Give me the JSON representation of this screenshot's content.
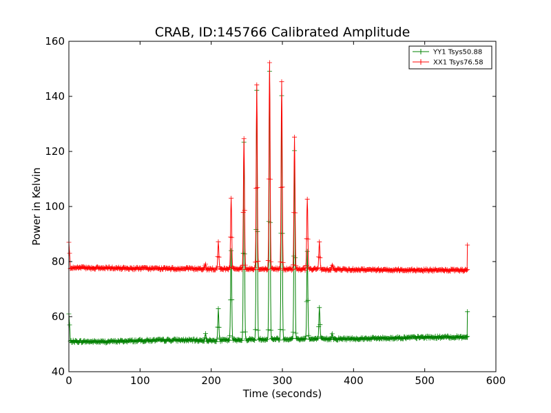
{
  "chart_data": {
    "type": "line",
    "title": "CRAB, ID:145766 Calibrated Amplitude",
    "xlabel": "Time (seconds)",
    "ylabel": "Power in Kelvin",
    "xlim": [
      0,
      600
    ],
    "ylim": [
      40,
      160
    ],
    "xticks": [
      0,
      100,
      200,
      300,
      400,
      500,
      600
    ],
    "yticks": [
      40,
      60,
      80,
      100,
      120,
      140,
      160
    ],
    "grid": false,
    "legend_position": "top-right",
    "x_range": [
      0,
      560
    ],
    "pulse_times": [
      192,
      210,
      228,
      246,
      264,
      282,
      299,
      317,
      335,
      352,
      370
    ],
    "series": [
      {
        "name": "YY1 Tsys50.88",
        "color": "#008000",
        "baseline": [
          [
            0,
            51.0
          ],
          [
            50,
            50.9
          ],
          [
            100,
            51.3
          ],
          [
            150,
            51.5
          ],
          [
            200,
            51.3
          ],
          [
            250,
            51.7
          ],
          [
            300,
            51.9
          ],
          [
            350,
            51.8
          ],
          [
            400,
            52.0
          ],
          [
            450,
            52.2
          ],
          [
            500,
            52.5
          ],
          [
            560,
            52.6
          ]
        ],
        "pulse_peaks": [
          53.5,
          62.5,
          84.0,
          123.0,
          142.0,
          149.0,
          140.0,
          120.0,
          84.0,
          63.0,
          54.0
        ],
        "start_spike": 61.0,
        "end_spike": 61.8,
        "end_dip": 51.5
      },
      {
        "name": "XX1 Tsys76.58",
        "color": "#ff0000",
        "baseline": [
          [
            0,
            77.8
          ],
          [
            50,
            77.6
          ],
          [
            100,
            77.5
          ],
          [
            150,
            77.4
          ],
          [
            200,
            77.3
          ],
          [
            250,
            77.4
          ],
          [
            300,
            77.3
          ],
          [
            350,
            77.2
          ],
          [
            400,
            77.1
          ],
          [
            450,
            77.0
          ],
          [
            500,
            76.9
          ],
          [
            560,
            76.8
          ]
        ],
        "pulse_peaks": [
          79.0,
          87.0,
          103.0,
          125.0,
          144.0,
          152.0,
          145.0,
          125.0,
          103.0,
          87.0,
          79.0
        ],
        "start_spike": 87.0,
        "end_spike": 86.0,
        "end_dip": 76.5
      }
    ]
  }
}
